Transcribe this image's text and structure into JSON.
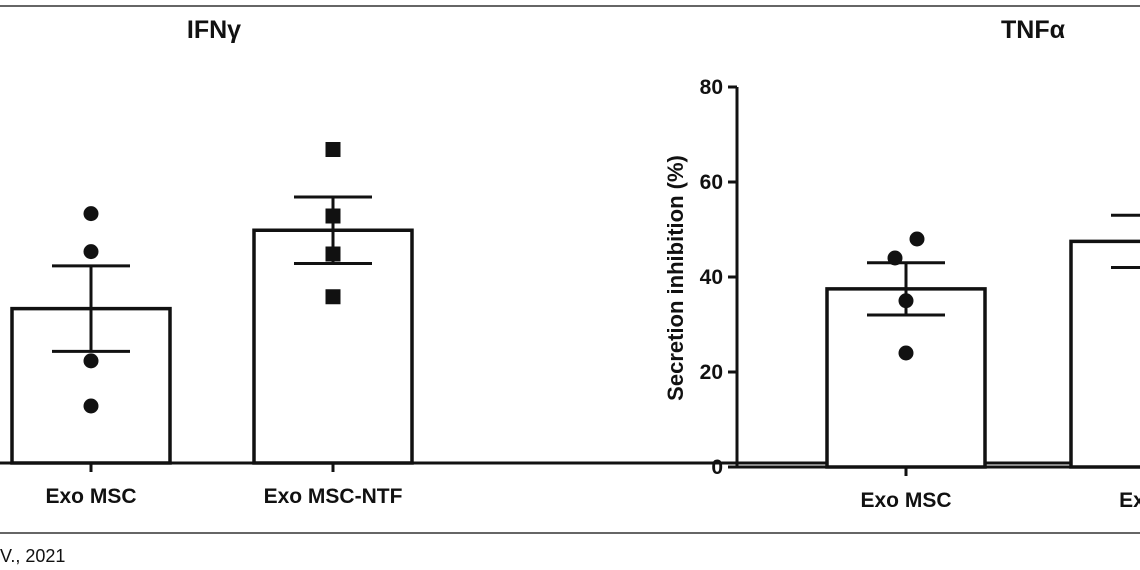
{
  "caption": "V., 2021",
  "chart_data": [
    {
      "type": "bar",
      "title": "IFNγ",
      "categories": [
        "Exo MSC",
        "Exo MSC-NTF"
      ],
      "series": [
        {
          "values": [
            32.5,
            49
          ],
          "errors": [
            9,
            7
          ]
        }
      ],
      "points": [
        [
          52.5,
          44.5,
          21.5,
          12
        ],
        [
          66,
          52,
          44,
          35
        ]
      ],
      "point_markers": [
        "circle",
        "square"
      ],
      "ylim": [
        0,
        80
      ],
      "grid": false
    },
    {
      "type": "bar",
      "title": "TNFα",
      "ylabel": "Secretion inhibition (%)",
      "yticks": [
        0,
        20,
        40,
        60,
        80
      ],
      "categories": [
        "Exo MSC",
        "Exo MSC-NTF"
      ],
      "categories_visible": [
        "Exo MSC",
        "Exo M"
      ],
      "series": [
        {
          "values": [
            37.5,
            47.5
          ],
          "errors": [
            5.5,
            5.5
          ]
        }
      ],
      "points": [
        [
          48,
          44,
          35,
          24
        ],
        [
          74,
          58,
          43,
          39.5
        ]
      ],
      "point_markers": [
        "circle",
        "square"
      ],
      "ylim": [
        0,
        80
      ],
      "grid": false
    }
  ]
}
